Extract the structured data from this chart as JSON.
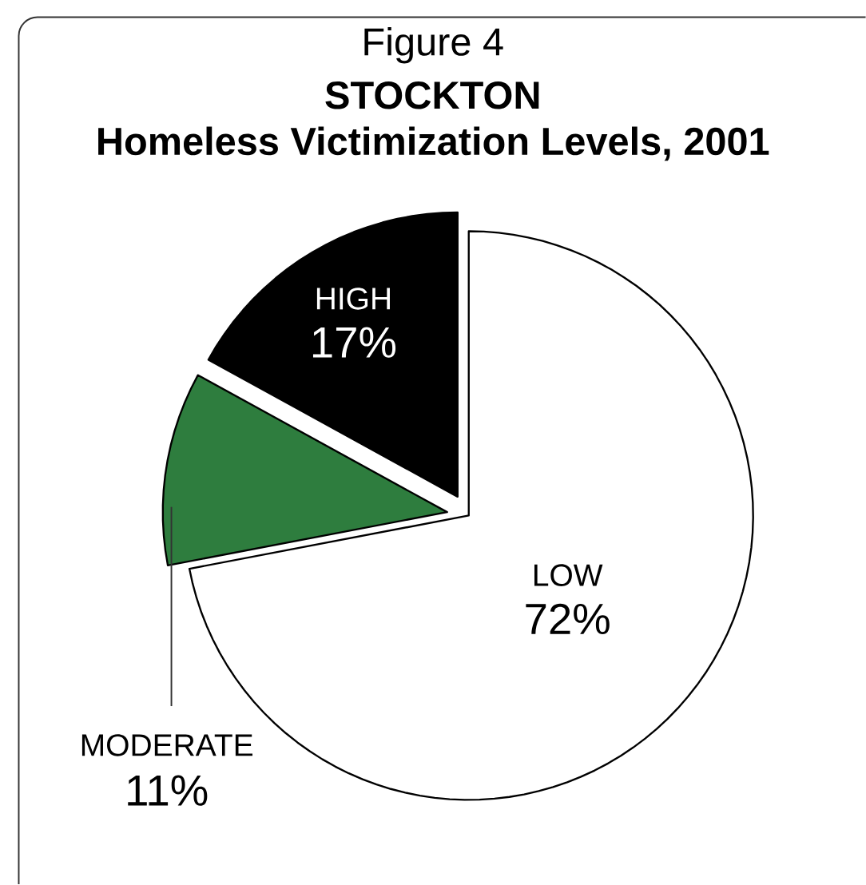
{
  "chart_data": {
    "type": "pie",
    "annotations": [
      "Figure 4"
    ],
    "title": "STOCKTON",
    "subtitle": "Homeless Victimization Levels, 2001",
    "categories": [
      "LOW",
      "MODERATE",
      "HIGH"
    ],
    "values": [
      72,
      11,
      17
    ],
    "value_labels": [
      "72%",
      "11%",
      "17%"
    ],
    "colors": [
      "#ffffff",
      "#2e7d3e",
      "#000000"
    ]
  }
}
